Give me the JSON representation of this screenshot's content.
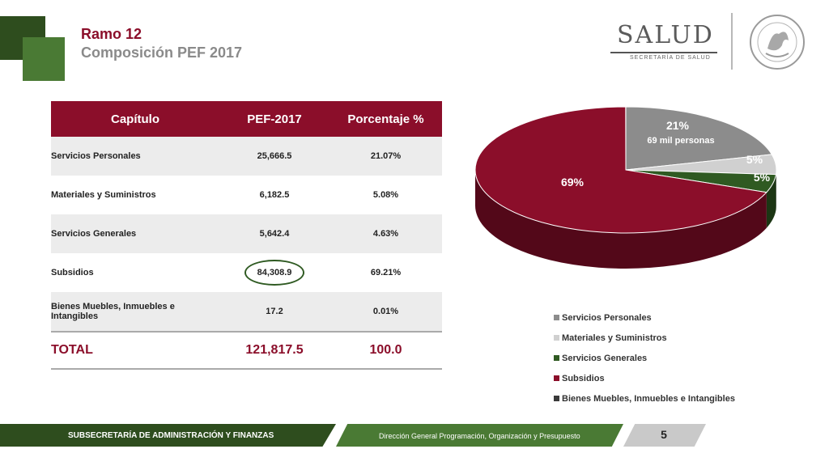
{
  "header": {
    "title": "Ramo 12",
    "subtitle": "Composición PEF 2017",
    "logo_word": "SALUD",
    "logo_sub": "SECRETARÍA DE SALUD"
  },
  "table": {
    "headers": [
      "Capítulo",
      "PEF-2017",
      "Porcentaje %"
    ],
    "rows": [
      {
        "name": "Servicios Personales",
        "value": "25,666.5",
        "pct": "21.07%"
      },
      {
        "name": "Materiales y Suministros",
        "value": "6,182.5",
        "pct": "5.08%"
      },
      {
        "name": "Servicios Generales",
        "value": "5,642.4",
        "pct": "4.63%"
      },
      {
        "name": "Subsidios",
        "value": "84,308.9",
        "pct": "69.21%"
      },
      {
        "name": "Bienes Muebles, Inmuebles e Intangibles",
        "value": "17.2",
        "pct": "0.01%"
      }
    ],
    "total": {
      "name": "TOTAL",
      "value": "121,817.5",
      "pct": "100.0"
    }
  },
  "chart_data": {
    "type": "pie",
    "categories": [
      "Servicios Personales",
      "Materiales y Suministros",
      "Servicios Generales",
      "Subsidios",
      "Bienes Muebles, Inmuebles e Intangibles"
    ],
    "values": [
      21.07,
      5.08,
      4.63,
      69.21,
      0.01
    ],
    "data_labels": [
      "21%",
      "5%",
      "5%",
      "69%",
      ""
    ],
    "annotation": "69 mil personas",
    "colors": [
      "#8c8c8c",
      "#d0d0d0",
      "#2f5a22",
      "#8b0e2a",
      "#3a3a3a"
    ],
    "legend_position": "bottom"
  },
  "footer": {
    "left": "SUBSECRETARÍA DE ADMINISTRACIÓN Y FINANZAS",
    "center": "Dirección General Programación, Organización y Presupuesto",
    "page": "5"
  },
  "colors": {
    "brand_red": "#8b0e2a",
    "brand_green": "#2e4d1e",
    "accent_green": "#4a7a34"
  }
}
